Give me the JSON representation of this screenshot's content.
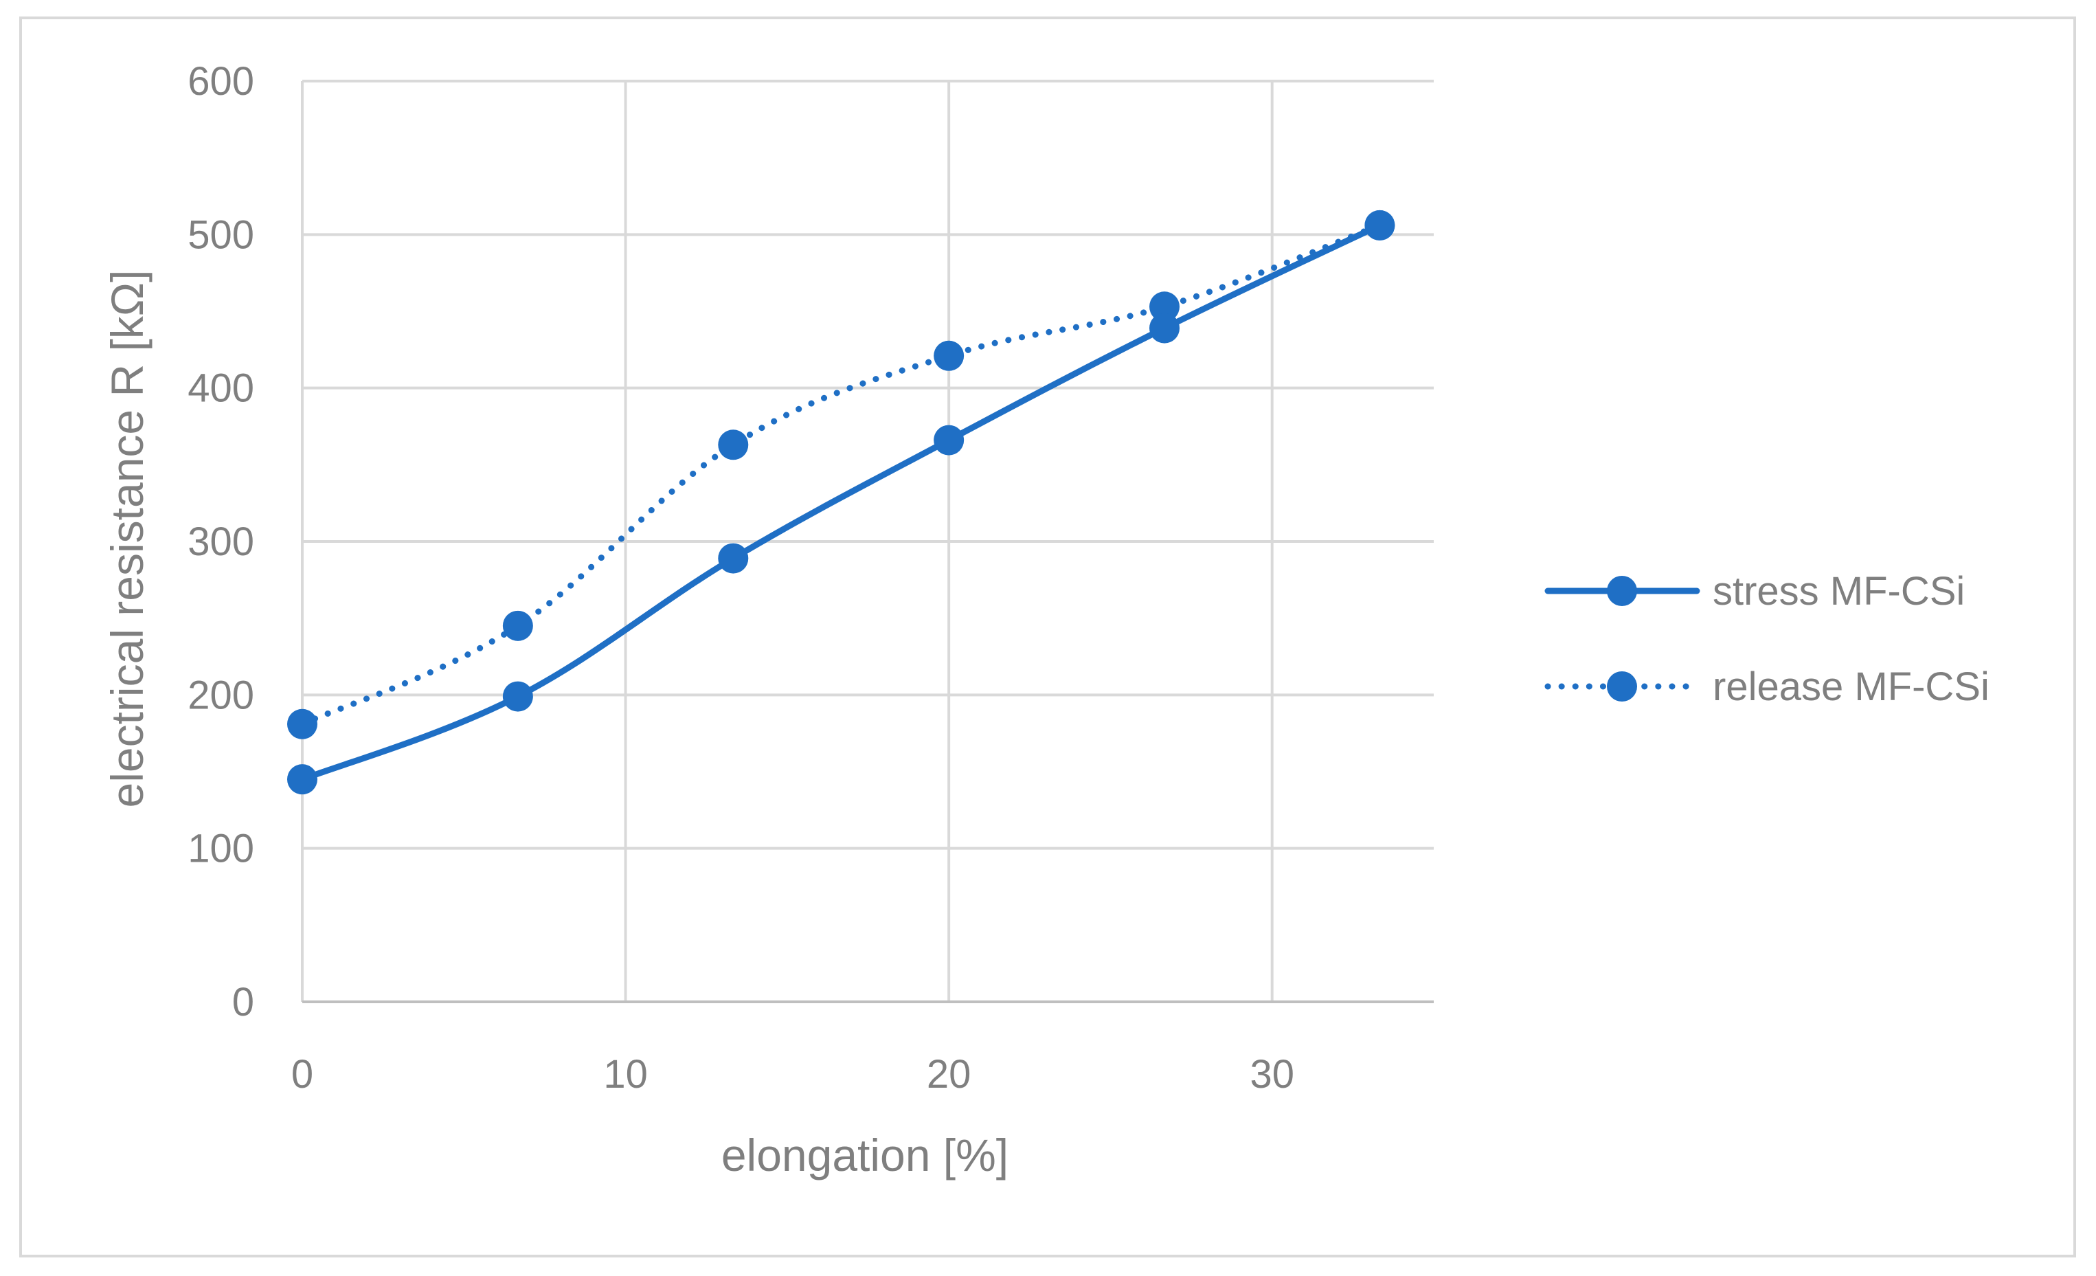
{
  "chart_data": {
    "type": "line",
    "title": "",
    "xlabel": "elongation [%]",
    "ylabel": "electrical resistance R [kΩ]",
    "xlim": [
      0,
      35
    ],
    "ylim": [
      0,
      600
    ],
    "x_ticks": [
      0,
      10,
      20,
      30
    ],
    "y_ticks": [
      0,
      100,
      200,
      300,
      400,
      500,
      600
    ],
    "grid": true,
    "legend_position": "right",
    "series": [
      {
        "name": "stress MF-CSi",
        "line_style": "solid",
        "color": "#1f6fc5",
        "x": [
          0,
          6.67,
          13.33,
          20,
          26.67,
          33.33
        ],
        "y": [
          145,
          199,
          289,
          366,
          439,
          506
        ]
      },
      {
        "name": "release MF-CSi",
        "line_style": "dotted",
        "color": "#1f6fc5",
        "x": [
          0,
          6.67,
          13.33,
          20,
          26.67,
          33.33
        ],
        "y": [
          181,
          245,
          363,
          421,
          453,
          506
        ]
      }
    ]
  }
}
